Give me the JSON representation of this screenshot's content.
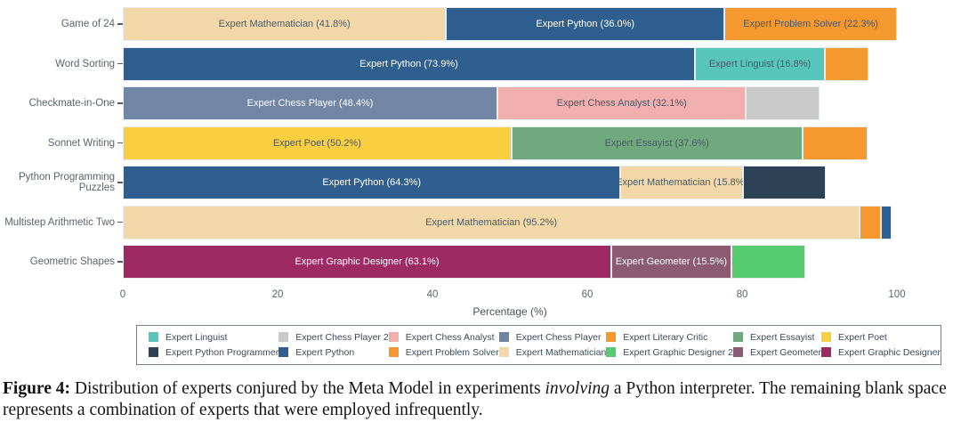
{
  "chart_data": {
    "type": "bar",
    "orientation": "horizontal_stacked",
    "xlabel": "Percentage (%)",
    "xlim": [
      0,
      100
    ],
    "xticks": [
      0,
      20,
      40,
      60,
      80,
      100
    ],
    "grid": false,
    "legend_position": "bottom",
    "rows": [
      {
        "category": "Game of 24",
        "segments": [
          {
            "label": "Expert Mathematician (41.8%)",
            "value": 41.8,
            "color": "#F2D8A6",
            "text": "dark"
          },
          {
            "label": "Expert Python (36.0%)",
            "value": 36.0,
            "color": "#2F5F8E",
            "text": "light"
          },
          {
            "label": "Expert Problem Solver (22.3%)",
            "value": 22.3,
            "color": "#F5992F",
            "text": "dark"
          }
        ]
      },
      {
        "category": "Word Sorting",
        "segments": [
          {
            "label": "Expert Python (73.9%)",
            "value": 73.9,
            "color": "#2F5F8E",
            "text": "light"
          },
          {
            "label": "Expert Linguist (16.8%)",
            "value": 16.8,
            "color": "#57C5B9",
            "text": "dark"
          },
          {
            "label": "",
            "value": 5.6,
            "color": "#F5992F",
            "text": "dark"
          }
        ]
      },
      {
        "category": "Checkmate-in-One",
        "segments": [
          {
            "label": "Expert Chess Player (48.4%)",
            "value": 48.4,
            "color": "#7185A4",
            "text": "light"
          },
          {
            "label": "Expert Chess Analyst (32.1%)",
            "value": 32.1,
            "color": "#F0AFAD",
            "text": "dark"
          },
          {
            "label": "",
            "value": 9.5,
            "color": "#C9C9C9",
            "text": "dark"
          }
        ]
      },
      {
        "category": "Sonnet Writing",
        "segments": [
          {
            "label": "Expert Poet (50.2%)",
            "value": 50.2,
            "color": "#F9CE40",
            "text": "dark"
          },
          {
            "label": "Expert Essayist (37.6%)",
            "value": 37.6,
            "color": "#70A97E",
            "text": "dark"
          },
          {
            "label": "",
            "value": 8.4,
            "color": "#F5992F",
            "text": "dark"
          }
        ]
      },
      {
        "category": "Python Programming Puzzles",
        "segments": [
          {
            "label": "Expert Python (64.3%)",
            "value": 64.3,
            "color": "#2F5F8E",
            "text": "light"
          },
          {
            "label": "Expert Mathematician (15.8%)",
            "value": 15.8,
            "color": "#F2D8A6",
            "text": "dark"
          },
          {
            "label": "",
            "value": 10.7,
            "color": "#2E4256",
            "text": "light"
          }
        ]
      },
      {
        "category": "Multistep Arithmetic Two",
        "segments": [
          {
            "label": "Expert Mathematician (95.2%)",
            "value": 95.2,
            "color": "#F2D8A6",
            "text": "dark"
          },
          {
            "label": "",
            "value": 2.7,
            "color": "#F5992F",
            "text": "dark"
          },
          {
            "label": "",
            "value": 1.4,
            "color": "#2F5F8E",
            "text": "light"
          }
        ]
      },
      {
        "category": "Geometric Shapes",
        "segments": [
          {
            "label": "Expert Graphic Designer (63.1%)",
            "value": 63.1,
            "color": "#9D2A63",
            "text": "light"
          },
          {
            "label": "Expert Geometer (15.5%)",
            "value": 15.5,
            "color": "#8B5B72",
            "text": "light"
          },
          {
            "label": "",
            "value": 9.6,
            "color": "#53CB6E",
            "text": "dark"
          }
        ]
      }
    ],
    "legend": [
      {
        "label": "Expert Linguist",
        "color": "#57C5B9"
      },
      {
        "label": "Expert Chess Player 2",
        "color": "#C9C9C9"
      },
      {
        "label": "Expert Chess Analyst",
        "color": "#F0AFAD"
      },
      {
        "label": "Expert Chess Player",
        "color": "#7185A4"
      },
      {
        "label": "Expert Literary Critic",
        "color": "#F5992F"
      },
      {
        "label": "Expert Essayist",
        "color": "#70A97E"
      },
      {
        "label": "Expert Poet",
        "color": "#F9CE40"
      },
      {
        "label": "Expert Python Programmer",
        "color": "#2E4256"
      },
      {
        "label": "Expert Python",
        "color": "#2F5F8E"
      },
      {
        "label": "Expert Problem Solver",
        "color": "#F5992F"
      },
      {
        "label": "Expert Mathematician",
        "color": "#F2D8A6"
      },
      {
        "label": "Expert Graphic Designer 2",
        "color": "#53CB6E"
      },
      {
        "label": "Expert Geometer",
        "color": "#8B5B72"
      },
      {
        "label": "Expert Graphic Designer",
        "color": "#9D2A63"
      }
    ]
  },
  "caption": {
    "prefix": "Figure 4:",
    "before_italic": " Distribution of experts conjured by the Meta Model in experiments ",
    "italic": "involving",
    "after_italic": " a Python interpreter. The remaining blank space represents a combination of experts that were employed infrequently."
  }
}
